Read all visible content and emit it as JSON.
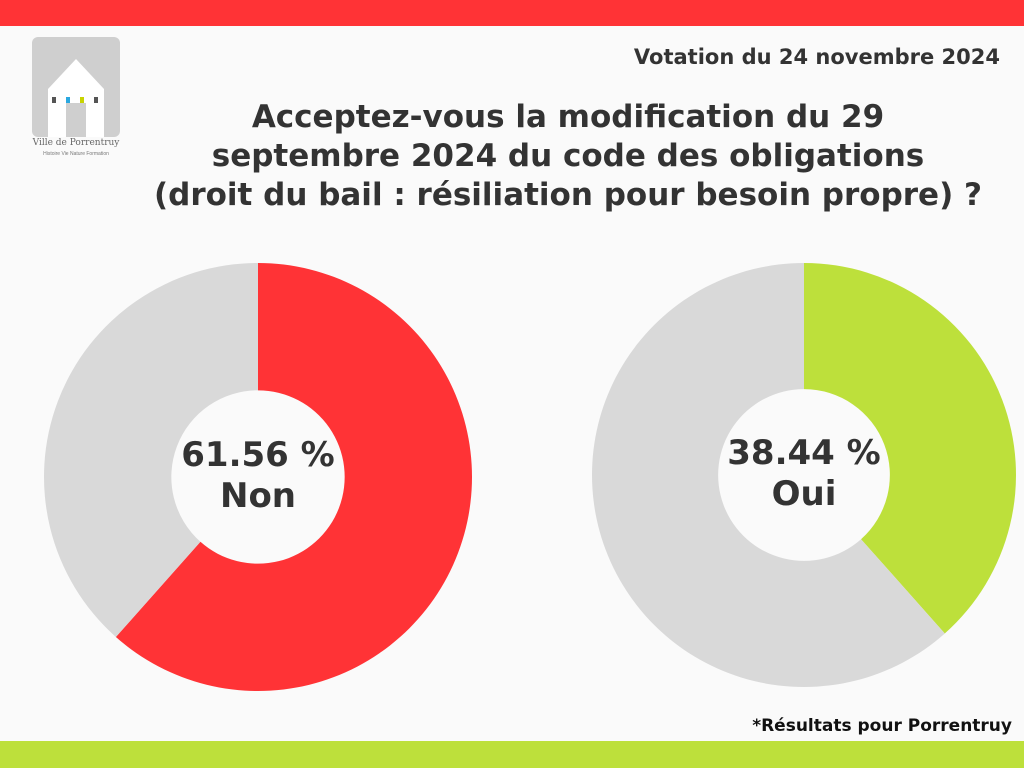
{
  "colors": {
    "top_bar": "#ff3336",
    "bottom_bar": "#bde03b",
    "track": "#d9d9d9",
    "non": "#ff3336",
    "oui": "#bde03b"
  },
  "logo": {
    "name": "Ville de Porrentruy",
    "tagline": "Histoire Vie Nature Formation",
    "icon": "porrentruy-house-logo"
  },
  "header": {
    "date": "Votation du 24 novembre 2024",
    "question_lines": [
      "Acceptez-vous la modification du 29",
      "septembre 2024 du code des obligations",
      "(droit du bail : résiliation pour besoin propre) ?"
    ]
  },
  "chart_data": [
    {
      "type": "pie",
      "series": [
        {
          "values": [
            61.56,
            38.44
          ]
        }
      ],
      "categories": [
        "Non",
        ""
      ],
      "center_value": "61.56 %",
      "center_label": "Non",
      "colors": [
        "#ff3336",
        "#d9d9d9"
      ]
    },
    {
      "type": "pie",
      "series": [
        {
          "values": [
            38.44,
            61.56
          ]
        }
      ],
      "categories": [
        "Oui",
        ""
      ],
      "center_value": "38.44 %",
      "center_label": "Oui",
      "colors": [
        "#bde03b",
        "#d9d9d9"
      ]
    }
  ],
  "footnote": "*Résultats pour Porrentruy"
}
